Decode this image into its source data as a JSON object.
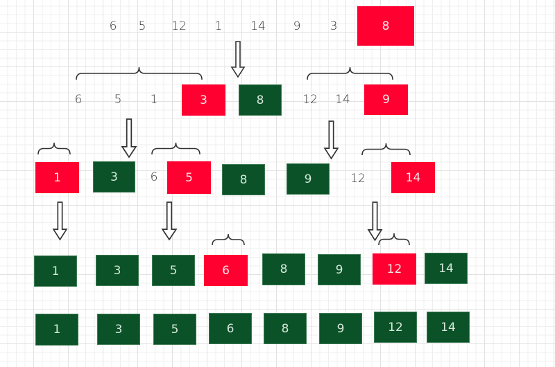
{
  "colors": {
    "pivot": "#ff0030",
    "sorted": "#0b5229",
    "text": "#333333"
  },
  "rows": [
    {
      "items": [
        {
          "value": "6",
          "style": "plain"
        },
        {
          "value": "5",
          "style": "plain"
        },
        {
          "value": "12",
          "style": "plain"
        },
        {
          "value": "1",
          "style": "plain"
        },
        {
          "value": "14",
          "style": "plain"
        },
        {
          "value": "9",
          "style": "plain"
        },
        {
          "value": "3",
          "style": "plain"
        },
        {
          "value": "8",
          "style": "pivot"
        }
      ]
    },
    {
      "items": [
        {
          "value": "6",
          "style": "plain"
        },
        {
          "value": "5",
          "style": "plain"
        },
        {
          "value": "1",
          "style": "plain"
        },
        {
          "value": "3",
          "style": "pivot"
        },
        {
          "value": "8",
          "style": "sorted"
        },
        {
          "value": "12",
          "style": "plain"
        },
        {
          "value": "14",
          "style": "plain"
        },
        {
          "value": "9",
          "style": "pivot"
        }
      ]
    },
    {
      "items": [
        {
          "value": "1",
          "style": "pivot"
        },
        {
          "value": "3",
          "style": "sorted"
        },
        {
          "value": "6",
          "style": "plain"
        },
        {
          "value": "5",
          "style": "pivot"
        },
        {
          "value": "8",
          "style": "sorted"
        },
        {
          "value": "9",
          "style": "sorted"
        },
        {
          "value": "12",
          "style": "plain"
        },
        {
          "value": "14",
          "style": "pivot"
        }
      ]
    },
    {
      "items": [
        {
          "value": "1",
          "style": "sorted"
        },
        {
          "value": "3",
          "style": "sorted"
        },
        {
          "value": "5",
          "style": "sorted"
        },
        {
          "value": "6",
          "style": "pivot"
        },
        {
          "value": "8",
          "style": "sorted"
        },
        {
          "value": "9",
          "style": "sorted"
        },
        {
          "value": "12",
          "style": "pivot"
        },
        {
          "value": "14",
          "style": "sorted"
        }
      ]
    },
    {
      "items": [
        {
          "value": "1",
          "style": "sorted"
        },
        {
          "value": "3",
          "style": "sorted"
        },
        {
          "value": "5",
          "style": "sorted"
        },
        {
          "value": "6",
          "style": "sorted"
        },
        {
          "value": "8",
          "style": "sorted"
        },
        {
          "value": "9",
          "style": "sorted"
        },
        {
          "value": "12",
          "style": "sorted"
        },
        {
          "value": "14",
          "style": "sorted"
        }
      ]
    }
  ]
}
